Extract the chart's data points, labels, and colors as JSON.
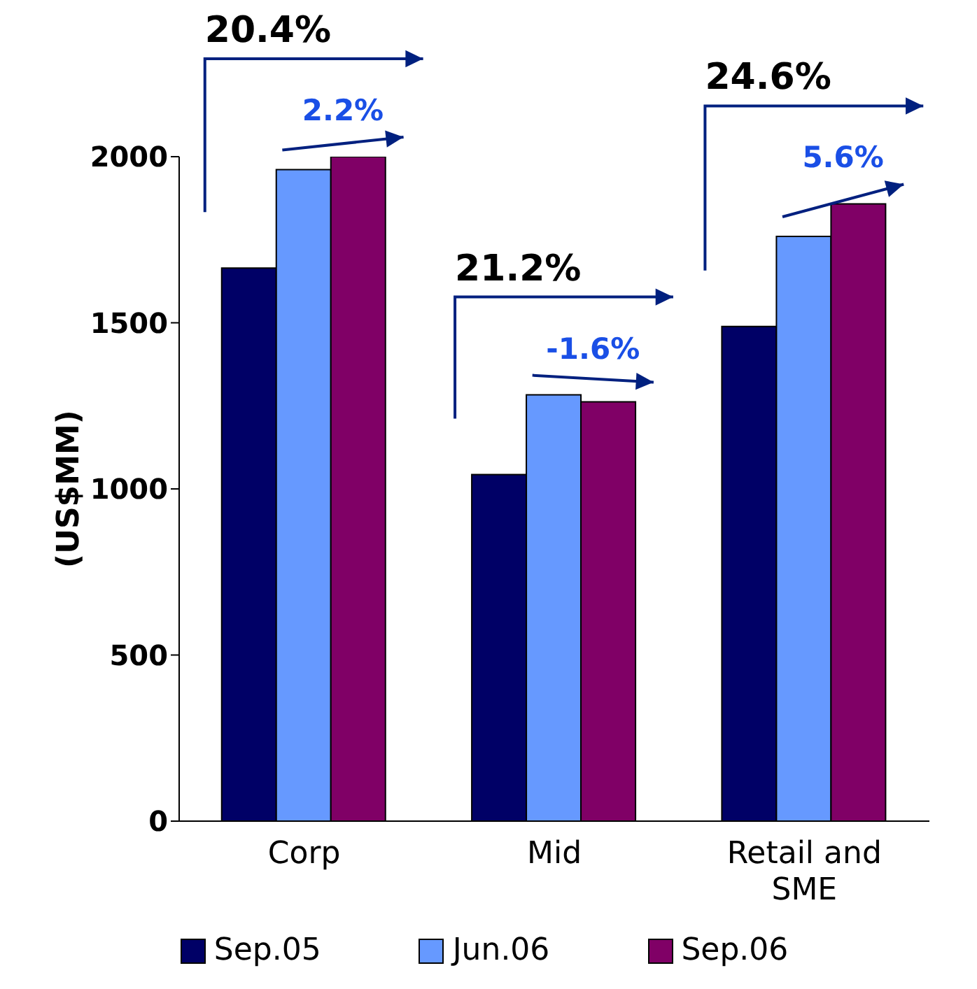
{
  "chart_data": {
    "type": "bar",
    "ylabel": "(US$MM)",
    "categories": [
      "Corp",
      "Mid",
      "Retail and SME"
    ],
    "series": [
      {
        "name": "Sep.05",
        "color": "#000066",
        "values": [
          1665,
          1043,
          1489
        ]
      },
      {
        "name": "Jun.06",
        "color": "#6699ff",
        "values": [
          1961,
          1283,
          1760
        ]
      },
      {
        "name": "Sep.06",
        "color": "#800066",
        "values": [
          2000,
          1262,
          1858
        ]
      }
    ],
    "ylim": [
      0,
      2000
    ],
    "yticks": [
      0,
      500,
      1000,
      1500,
      2000
    ],
    "legend": "bottom",
    "annotations": [
      "20.4%",
      "2.2%",
      "21.2%",
      "-1.6%",
      "24.6%",
      "5.6%"
    ]
  }
}
